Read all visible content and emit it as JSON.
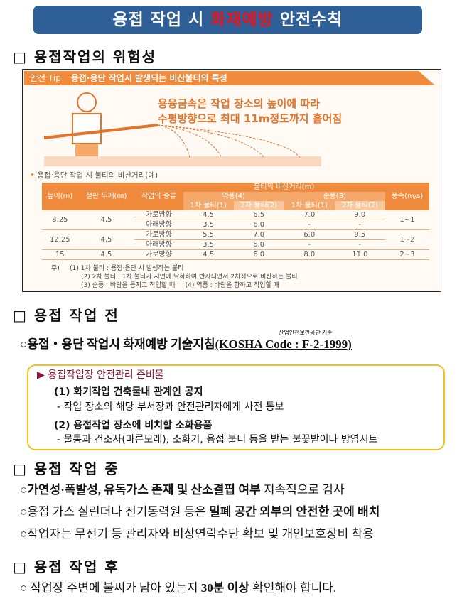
{
  "title": {
    "pre": "용접 작업 시 ",
    "highlight": "화재예방",
    "post": " 안전수칙"
  },
  "sections": {
    "s1": "□ 용접작업의 위험성",
    "s2": "□ 용접 작업 전",
    "s3": "□ 용접 작업 중",
    "s4": "□ 용접 작업 후"
  },
  "infographic": {
    "tip_label": "안전 Tip",
    "tip_title": "용접·용단 작업시 발생되는 비산불티의 특성",
    "headline1": "용융금속은 작업 장소의 높이에 따라",
    "headline2": "수평방향으로 최대 11m정도까지 흩어짐",
    "table_caption": "용접·용단 작업 시 불티의 비산거리(예)",
    "headers": {
      "height": "높이(m)",
      "thickness": "철판 두께(㎜)",
      "work_type": "작업의 종류",
      "distance": "불티의 비산거리(m)",
      "headwind": "역풍(4)",
      "tailwind": "순풍(3)",
      "primary": "1차 불티(1)",
      "secondary": "2차 불티(2)",
      "wind": "풍속(m/s)"
    },
    "rows": [
      {
        "height": "8.25",
        "thickness": "4.5",
        "type": "가로방향",
        "h1": "4.5",
        "h2": "6.5",
        "t1": "7.0",
        "t2": "9.0",
        "wind": "1~1"
      },
      {
        "type": "아래방향",
        "h1": "3.5",
        "h2": "6.0",
        "t1": "-",
        "t2": "-"
      },
      {
        "height": "12.25",
        "thickness": "4.5",
        "type": "가로방향",
        "h1": "5.5",
        "h2": "7.0",
        "t1": "6.0",
        "t2": "9.5",
        "wind": "1~2"
      },
      {
        "type": "아래방향",
        "h1": "3.5",
        "h2": "6.0",
        "t1": "-",
        "t2": "-"
      },
      {
        "height": "15",
        "thickness": "4.5",
        "type": "가로방향",
        "h1": "4.5",
        "h2": "6.0",
        "t1": "8.0",
        "t2": "11.0",
        "wind": "2~3"
      }
    ],
    "notes_label": "주)",
    "notes": [
      "(1) 1차 불티 : 용접·용단 시 발생하는 불티",
      "(2) 2차 불티 : 1차 불티가 지면에 낙하하여 반사되면서 2차적으로 비산하는 불티",
      "(3) 순풍 : 바람을 등지고 작업할 때",
      "(4) 역풍 : 바람을 향하고 작업할 때"
    ]
  },
  "before": {
    "line": "○용접・용단 작업시 화재예방 기술지침",
    "code": "(KOSHA Code : F-2-1999)",
    "code_note": "산업안전보건공단 기준",
    "box_title": "용접작업장 안전관리 준비물",
    "item1": "(1) 화기작업 건축물내 관계인 공지",
    "item1_desc": "- 작업 장소의 해당 부서장과 안전관리자에게 사전 통보",
    "item2": "(2) 용접작업 장소에 비치할 소화용품",
    "item2_desc": "- 물통과 건조사(마른모래), 소화기, 용접 불티 등을 받는 불꽃받이나 방염시트"
  },
  "during": [
    {
      "bold": "○가연성·폭발성, 유독가스 존재 및 산소결핍 여부",
      "rest": " 지속적으로 검사"
    },
    {
      "pre": "○용접 가스 실린더나 전기동력원 등은 ",
      "bold": "밀폐 공간 외부의 안전한 곳에 배치"
    },
    {
      "pre": "○작업자는 무전기 등 관리자와 비상연락수단 확보 및 개인보호장비 착용"
    }
  ],
  "after": {
    "pre": "○  작업장 주변에 불씨가 남아 있는지 ",
    "bold": "30분 이상",
    "post": " 확인해야 합니다."
  },
  "colors": {
    "title_bg": "#2e5f97",
    "highlight": "#e8141c",
    "orange": "#f08a3c",
    "box_border": "#f1c21b",
    "box_title": "#8b1538"
  }
}
